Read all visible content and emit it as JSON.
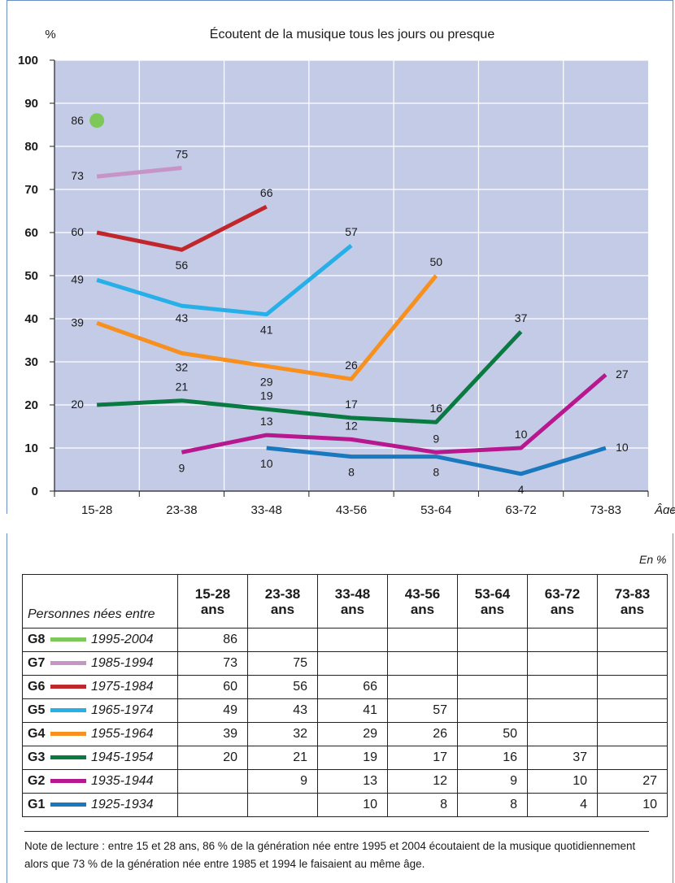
{
  "chart_data": {
    "type": "line",
    "title": "Écoutent de la musique tous les jours ou presque",
    "ylabel": "%",
    "xlabel": "Âge",
    "ylim": [
      0,
      100
    ],
    "yticks": [
      "0",
      "10",
      "20",
      "30",
      "40",
      "50",
      "60",
      "70",
      "80",
      "90",
      "100"
    ],
    "categories": [
      "15-28",
      "23-38",
      "33-48",
      "43-56",
      "53-64",
      "63-72",
      "73-83"
    ],
    "grid": true,
    "series": [
      {
        "name": "G8",
        "color": "#7ec85a",
        "values": [
          86,
          null,
          null,
          null,
          null,
          null,
          null
        ]
      },
      {
        "name": "G7",
        "color": "#c794c8",
        "values": [
          73,
          75,
          null,
          null,
          null,
          null,
          null
        ]
      },
      {
        "name": "G6",
        "color": "#c0272d",
        "values": [
          60,
          56,
          66,
          null,
          null,
          null,
          null
        ]
      },
      {
        "name": "G5",
        "color": "#27b0e8",
        "values": [
          49,
          43,
          41,
          57,
          null,
          null,
          null
        ]
      },
      {
        "name": "G4",
        "color": "#f7901e",
        "values": [
          39,
          32,
          29,
          26,
          50,
          null,
          null
        ]
      },
      {
        "name": "G3",
        "color": "#0a7a43",
        "values": [
          20,
          21,
          19,
          17,
          16,
          37,
          null
        ]
      },
      {
        "name": "G2",
        "color": "#b8188f",
        "values": [
          null,
          9,
          13,
          12,
          9,
          10,
          27
        ]
      },
      {
        "name": "G1",
        "color": "#1a78bf",
        "values": [
          null,
          null,
          10,
          8,
          8,
          4,
          10
        ]
      }
    ]
  },
  "table": {
    "unit": "En %",
    "header_first": "Personnes nées entre",
    "columns": [
      "15-28\nans",
      "23-38\nans",
      "33-48\nans",
      "43-56\nans",
      "53-64\nans",
      "63-72\nans",
      "73-83\nans"
    ],
    "rows": [
      {
        "code": "G8",
        "years": "1995-2004",
        "color": "#7ec85a",
        "values": [
          "86",
          "",
          "",
          "",
          "",
          "",
          ""
        ]
      },
      {
        "code": "G7",
        "years": "1985-1994",
        "color": "#c794c8",
        "values": [
          "73",
          "75",
          "",
          "",
          "",
          "",
          ""
        ]
      },
      {
        "code": "G6",
        "years": "1975-1984",
        "color": "#c0272d",
        "values": [
          "60",
          "56",
          "66",
          "",
          "",
          "",
          ""
        ]
      },
      {
        "code": "G5",
        "years": "1965-1974",
        "color": "#27b0e8",
        "values": [
          "49",
          "43",
          "41",
          "57",
          "",
          "",
          ""
        ]
      },
      {
        "code": "G4",
        "years": "1955-1964",
        "color": "#f7901e",
        "values": [
          "39",
          "32",
          "29",
          "26",
          "50",
          "",
          ""
        ]
      },
      {
        "code": "G3",
        "years": "1945-1954",
        "color": "#0a7a43",
        "values": [
          "20",
          "21",
          "19",
          "17",
          "16",
          "37",
          ""
        ]
      },
      {
        "code": "G2",
        "years": "1935-1944",
        "color": "#b8188f",
        "values": [
          "",
          "9",
          "13",
          "12",
          "9",
          "10",
          "27"
        ]
      },
      {
        "code": "G1",
        "years": "1925-1934",
        "color": "#1a78bf",
        "values": [
          "",
          "",
          "10",
          "8",
          "8",
          "4",
          "10"
        ]
      }
    ]
  },
  "note": "Note de lecture : entre 15 et 28 ans, 86 % de la génération née entre 1995 et 2004 écoutaient de la musique quotidiennement alors que 73 % de la génération née entre 1985 et 1994 le faisaient au même âge.",
  "colors": {
    "plot_bg": "#c4cbe6",
    "grid": "#ffffff",
    "frame": "#6b8fc4"
  }
}
